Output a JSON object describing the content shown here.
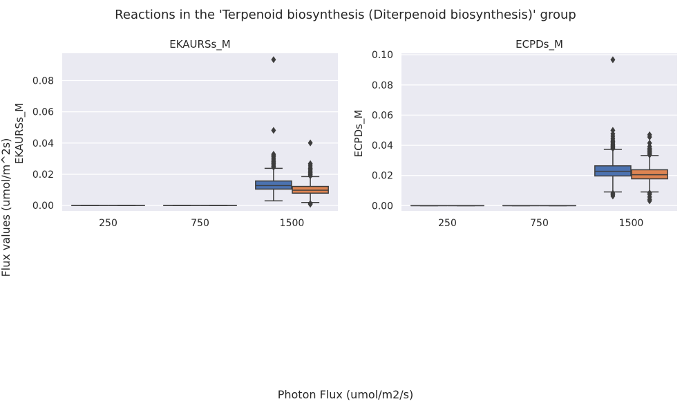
{
  "figure": {
    "title": "Reactions in the 'Terpenoid biosynthesis (Diterpenoid biosynthesis)' group",
    "supylabel": "Flux values (umol/m^2s)",
    "supxlabel": "Photon Flux (umol/m2/s)"
  },
  "colors": {
    "panel_bg": "#eaeaf2",
    "grid": "#ffffff",
    "series": [
      "#4c72b0",
      "#dd8452"
    ],
    "line": "#3d3d3d"
  },
  "chart_data": [
    {
      "type": "box",
      "title": "EKAURSs_M",
      "ylabel": "EKAURSs_M",
      "categories": [
        "250",
        "750",
        "1500"
      ],
      "yticks": [
        "0.00",
        "0.02",
        "0.04",
        "0.06",
        "0.08"
      ],
      "ylim": [
        -0.0035,
        0.0975
      ],
      "grid": true,
      "series": [
        {
          "boxes": [
            {
              "q1": 0,
              "median": 0,
              "q3": 0,
              "whislo": 0,
              "whishi": 0,
              "fliers": []
            },
            {
              "q1": 0,
              "median": 0,
              "q3": 0,
              "whislo": 0,
              "whishi": 0,
              "fliers": []
            },
            {
              "q1": 0.0105,
              "median": 0.0127,
              "q3": 0.0157,
              "whislo": 0.003,
              "whishi": 0.0238,
              "fliers": [
                0.0245,
                0.0252,
                0.026,
                0.0268,
                0.0275,
                0.0283,
                0.0292,
                0.0302,
                0.0312,
                0.0322,
                0.0328,
                0.0481,
                0.0934
              ]
            }
          ]
        },
        {
          "boxes": [
            {
              "q1": 0,
              "median": 0,
              "q3": 0,
              "whislo": 0,
              "whishi": 0,
              "fliers": []
            },
            {
              "q1": 0,
              "median": 0,
              "q3": 0,
              "whislo": 0,
              "whishi": 0,
              "fliers": []
            },
            {
              "q1": 0.0079,
              "median": 0.0098,
              "q3": 0.0122,
              "whislo": 0.0019,
              "whishi": 0.0185,
              "fliers": [
                0.0008,
                0.0013,
                0.019,
                0.0197,
                0.0204,
                0.0212,
                0.022,
                0.0228,
                0.0237,
                0.0247,
                0.0258,
                0.0268,
                0.0401
              ]
            }
          ]
        }
      ]
    },
    {
      "type": "box",
      "title": "ECPDs_M",
      "ylabel": "ECPDs_M",
      "categories": [
        "250",
        "750",
        "1500"
      ],
      "yticks": [
        "0.00",
        "0.02",
        "0.04",
        "0.06",
        "0.08",
        "0.10"
      ],
      "ylim": [
        -0.0035,
        0.101
      ],
      "grid": true,
      "series": [
        {
          "boxes": [
            {
              "q1": 0,
              "median": 0,
              "q3": 0,
              "whislo": 0,
              "whishi": 0,
              "fliers": []
            },
            {
              "q1": 0,
              "median": 0,
              "q3": 0,
              "whislo": 0,
              "whishi": 0,
              "fliers": []
            },
            {
              "q1": 0.0197,
              "median": 0.0228,
              "q3": 0.0264,
              "whislo": 0.0091,
              "whishi": 0.0373,
              "fliers": [
                0.0064,
                0.0072,
                0.0083,
                0.0379,
                0.0386,
                0.0393,
                0.04,
                0.0408,
                0.0416,
                0.0425,
                0.0435,
                0.0447,
                0.0461,
                0.0476,
                0.0499,
                0.0967
              ]
            }
          ]
        },
        {
          "boxes": [
            {
              "q1": 0,
              "median": 0,
              "q3": 0,
              "whislo": 0,
              "whishi": 0,
              "fliers": []
            },
            {
              "q1": 0,
              "median": 0,
              "q3": 0,
              "whislo": 0,
              "whishi": 0,
              "fliers": []
            },
            {
              "q1": 0.0178,
              "median": 0.0205,
              "q3": 0.0238,
              "whislo": 0.0091,
              "whishi": 0.0332,
              "fliers": [
                0.0032,
                0.0042,
                0.0058,
                0.0075,
                0.0085,
                0.0336,
                0.0342,
                0.035,
                0.0357,
                0.0364,
                0.0372,
                0.0379,
                0.0392,
                0.0415,
                0.0455,
                0.047
              ]
            }
          ]
        }
      ]
    }
  ]
}
